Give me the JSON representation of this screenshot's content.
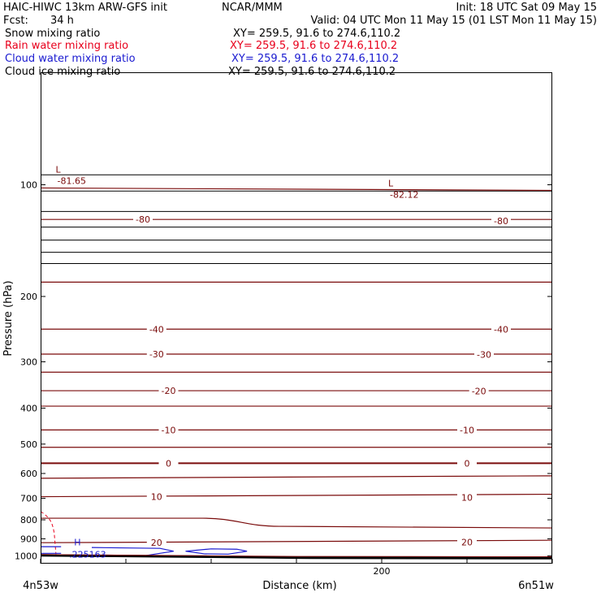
{
  "header": {
    "model": "HAIC-HIWC 13km ARW-GFS init",
    "agency": "NCAR/MMM",
    "init": "Init: 18 UTC Sat 09 May 15",
    "fcst_label": "Fcst:",
    "fcst_value": "34 h",
    "valid": "Valid: 04 UTC Mon 11 May 15 (01 LST Mon 11 May 15)"
  },
  "legend": [
    {
      "label": "Snow mixing ratio",
      "xy": "XY= 259.5, 91.6 to 274.6,110.2",
      "color": "#000000"
    },
    {
      "label": "Rain water mixing ratio",
      "xy": "XY= 259.5, 91.6 to 274.6,110.2",
      "color": "#e8001c"
    },
    {
      "label": "Cloud water mixing ratio",
      "xy": "XY= 259.5, 91.6 to 274.6,110.2",
      "color": "#1a1ad0"
    },
    {
      "label": "Cloud ice mixing ratio",
      "xy": "XY= 259.5, 91.6 to 274.6,110.2",
      "color": "#000000"
    }
  ],
  "chart_data": {
    "type": "line",
    "xlabel": "Distance (km)",
    "ylabel": "Pressure (hPa)",
    "xlim": [
      0,
      300
    ],
    "ylim": [
      1050,
      50
    ],
    "y_scale": "log",
    "x_ticks": [
      200
    ],
    "y_ticks": [
      100,
      200,
      300,
      400,
      500,
      600,
      700,
      800,
      900,
      1000
    ],
    "x_start_label": "4n53w",
    "x_end_label": "6n51w",
    "colors": {
      "isotherm": "#7a0b0b",
      "theta": "#000000",
      "rain": "#e8001c",
      "cloud": "#1a1ad0",
      "terrain": "#000000"
    },
    "isotherm_labels": [
      {
        "text": "-80",
        "x": 60,
        "p": 124
      },
      {
        "text": "-80",
        "x": 270,
        "p": 125
      },
      {
        "text": "-40",
        "x": 68,
        "p": 245
      },
      {
        "text": "-40",
        "x": 270,
        "p": 245
      },
      {
        "text": "-30",
        "x": 68,
        "p": 286
      },
      {
        "text": "-30",
        "x": 260,
        "p": 287
      },
      {
        "text": "-20",
        "x": 75,
        "p": 359
      },
      {
        "text": "-20",
        "x": 257,
        "p": 360
      },
      {
        "text": "-10",
        "x": 75,
        "p": 458
      },
      {
        "text": "-10",
        "x": 250,
        "p": 458
      },
      {
        "text": "0",
        "x": 75,
        "p": 563
      },
      {
        "text": "0",
        "x": 250,
        "p": 563
      },
      {
        "text": "10",
        "x": 68,
        "p": 693
      },
      {
        "text": "10",
        "x": 250,
        "p": 697
      },
      {
        "text": "20",
        "x": 68,
        "p": 922
      },
      {
        "text": "20",
        "x": 250,
        "p": 918
      }
    ],
    "extrema": [
      {
        "type": "L",
        "value": "-81.65",
        "x": 5,
        "p": 90
      },
      {
        "type": "L",
        "value": "-82.12",
        "x": 200,
        "p": 98
      },
      {
        "type": "H",
        "value": ".225163",
        "x": 12,
        "p": 970
      }
    ]
  }
}
